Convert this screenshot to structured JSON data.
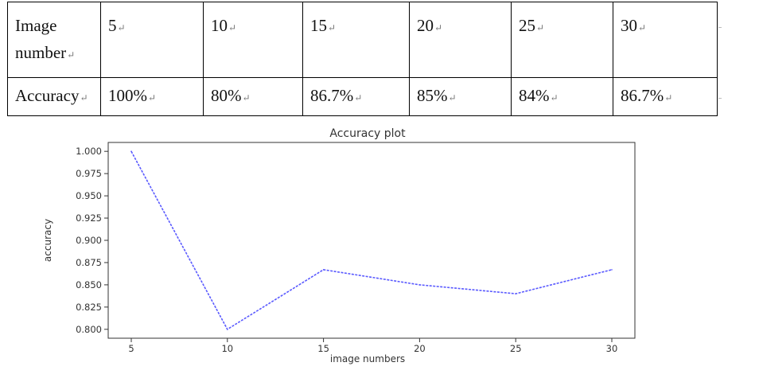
{
  "table": {
    "row_image": {
      "label": "Image number",
      "values": [
        "5",
        "10",
        "15",
        "20",
        "25",
        "30"
      ]
    },
    "row_accuracy": {
      "label": "Accuracy",
      "values": [
        "100%",
        "80%",
        "86.7%",
        "85%",
        "84%",
        "86.7%"
      ]
    },
    "cell_mark": "↵"
  },
  "chart_data": {
    "type": "line",
    "title": "Accuracy plot",
    "xlabel": "image numbers",
    "ylabel": "accuracy",
    "x": [
      5,
      10,
      15,
      20,
      25,
      30
    ],
    "y": [
      1.0,
      0.8,
      0.867,
      0.85,
      0.84,
      0.867
    ],
    "xticks": [
      "5",
      "10",
      "15",
      "20",
      "25",
      "30"
    ],
    "yticks": [
      "0.800",
      "0.825",
      "0.850",
      "0.875",
      "0.900",
      "0.925",
      "0.950",
      "0.975",
      "1.000"
    ],
    "xlim": [
      3.8,
      31.2
    ],
    "ylim": [
      0.79,
      1.01
    ],
    "line_color": "#5a5aff",
    "line_style": "dashed",
    "grid": false
  }
}
